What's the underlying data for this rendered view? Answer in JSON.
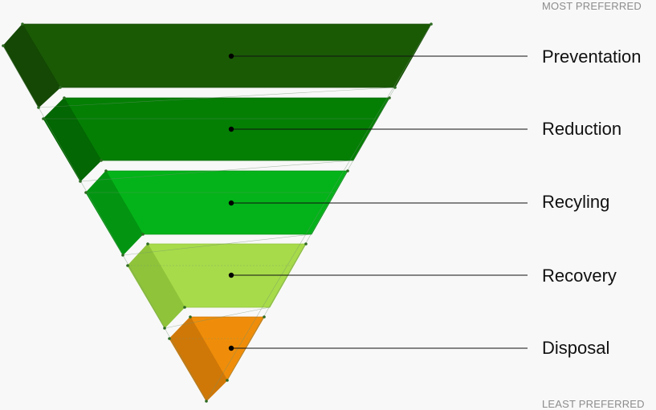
{
  "labels": {
    "top": "MOST PREFERRED",
    "bottom": "LEAST PREFERRED"
  },
  "tiers": [
    {
      "label": "Preventation",
      "color": "#1a5a05",
      "dark": "#144804"
    },
    {
      "label": "Reduction",
      "color": "#047f04",
      "dark": "#036703"
    },
    {
      "label": "Recyling",
      "color": "#04b319",
      "dark": "#039512"
    },
    {
      "label": "Recovery",
      "color": "#a8db4a",
      "dark": "#8fc33a"
    },
    {
      "label": "Disposal",
      "color": "#ef8d0a",
      "dark": "#cf7808"
    }
  ]
}
